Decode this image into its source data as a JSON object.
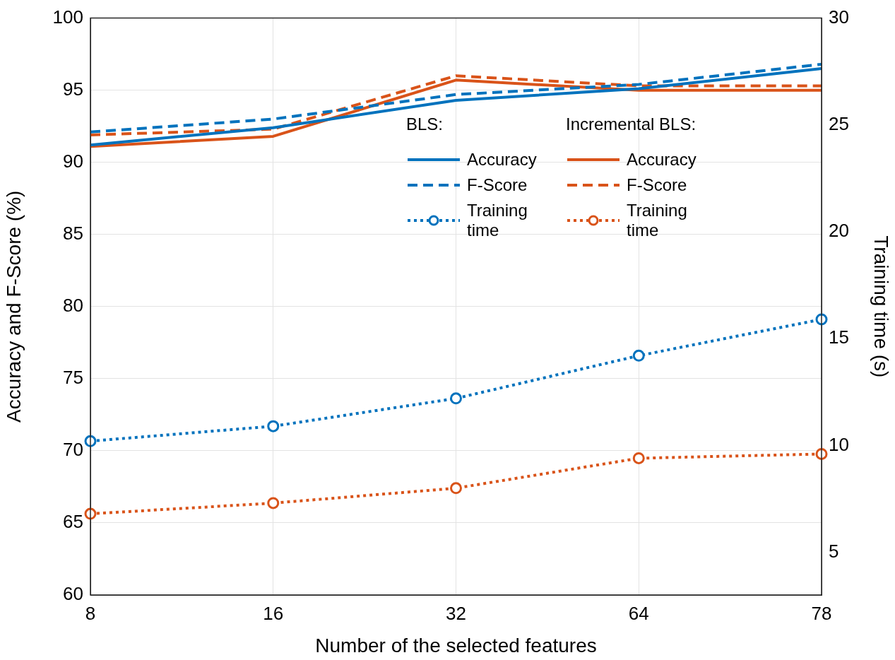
{
  "chart_data": {
    "type": "line",
    "categories": [
      "8",
      "16",
      "32",
      "64",
      "78"
    ],
    "xlabel": "Number of the selected features",
    "ylabel": "Accuracy and F-Score (%)",
    "y2label": "Training time (s)",
    "ylim": [
      60,
      100
    ],
    "yticks": [
      60,
      65,
      70,
      75,
      80,
      85,
      90,
      95,
      100
    ],
    "y2lim": [
      3,
      30
    ],
    "y2ticks": [
      5,
      10,
      15,
      20,
      25,
      30
    ],
    "grid": true,
    "legend": "center",
    "annotations": [
      "BLS:",
      "Incremental BLS:"
    ],
    "series": [
      {
        "name": "Accuracy",
        "color": "#0072bd",
        "line_style": "solid",
        "values": [
          91.2,
          92.4,
          94.3,
          95.1,
          96.5
        ]
      },
      {
        "name": "F-Score",
        "color": "#0072bd",
        "line_style": "dashed",
        "values": [
          92.1,
          93.0,
          94.7,
          95.4,
          96.8
        ]
      },
      {
        "name": "Training time",
        "color": "#0072bd",
        "line_style": "dotted",
        "marker": "circle",
        "axis": "y2",
        "values": [
          10.2,
          10.9,
          12.2,
          14.2,
          15.9
        ]
      },
      {
        "name": "Accuracy",
        "color": "#d95319",
        "line_style": "solid",
        "values": [
          91.1,
          91.8,
          95.7,
          95.0,
          95.0
        ]
      },
      {
        "name": "F-Score",
        "color": "#d95319",
        "line_style": "dashed",
        "values": [
          91.9,
          92.3,
          96.0,
          95.3,
          95.3
        ]
      },
      {
        "name": "Training time",
        "color": "#d95319",
        "line_style": "dotted",
        "marker": "circle",
        "axis": "y2",
        "values": [
          6.8,
          7.3,
          8.0,
          9.4,
          9.6
        ]
      }
    ]
  }
}
